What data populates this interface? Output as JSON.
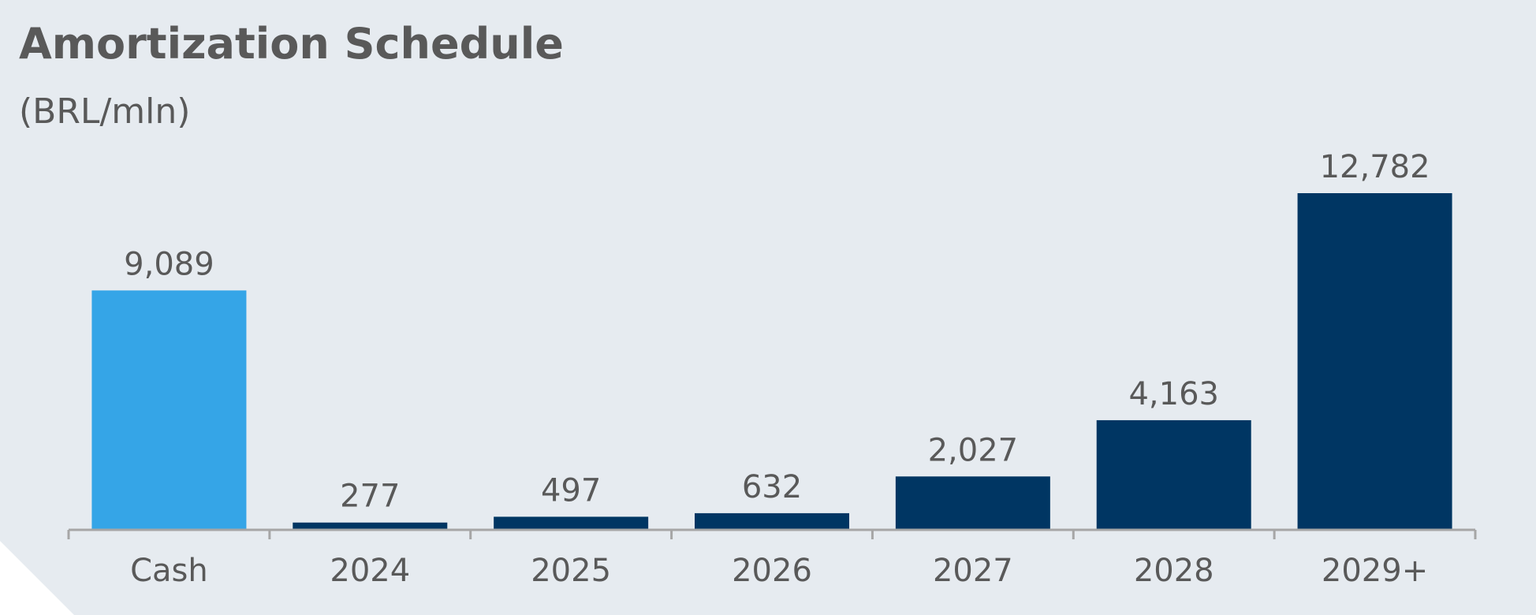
{
  "title": "Amortization Schedule",
  "subtitle": "(BRL/mln)",
  "colors": {
    "cash": "#35a5e7",
    "debt": "#003663",
    "axis": "#a6a6a6",
    "text": "#595959",
    "background": "#e6ebf0"
  },
  "chart_data": {
    "type": "bar",
    "title": "Amortization Schedule",
    "subtitle": "(BRL/mln)",
    "categories": [
      "Cash",
      "2024",
      "2025",
      "2026",
      "2027",
      "2028",
      "2029+"
    ],
    "values": [
      9089,
      277,
      497,
      632,
      2027,
      4163,
      12782
    ],
    "value_labels": [
      "9,089",
      "277",
      "497",
      "632",
      "2,027",
      "4,163",
      "12,782"
    ],
    "bar_colors": [
      "#35a5e7",
      "#003663",
      "#003663",
      "#003663",
      "#003663",
      "#003663",
      "#003663"
    ],
    "xlabel": "",
    "ylabel": "",
    "ylim": [
      0,
      12782
    ],
    "grid": false,
    "legend": "none"
  }
}
